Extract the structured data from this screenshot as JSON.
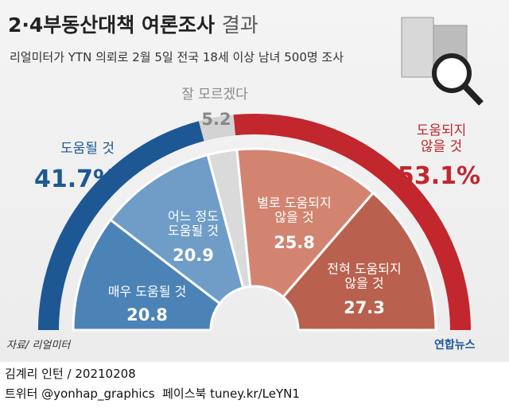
{
  "header": {
    "title": "2·4부동산대책 여론조사",
    "title_suffix": "결과",
    "subtitle": "리얼미터가 YTN 의뢰로 2월 5일 전국 18세 이상 남녀 500명 조사"
  },
  "chart_data": {
    "type": "half-donut",
    "outer": {
      "categories": [
        "도움될 것",
        "잘 모르겠다",
        "도움되지\n않을 것"
      ],
      "values": [
        41.7,
        5.2,
        53.1
      ],
      "value_labels": [
        "41.7%",
        "5.2",
        "53.1%"
      ],
      "colors": [
        "#1d5895",
        "#d3d3d3",
        "#c1272d"
      ]
    },
    "inner": {
      "categories": [
        "매우 도움될 것",
        "어느 정도\n도움될 것",
        "별로 도움되지\n않을 것",
        "전혀 도움되지\n않을 것"
      ],
      "values": [
        20.8,
        20.9,
        25.8,
        27.3
      ],
      "colors": [
        "#4c83b6",
        "#6f9dc7",
        "#d28470",
        "#b9614e"
      ]
    }
  },
  "footer": {
    "source": "자료/ 리얼미터",
    "logo": "연합뉴스",
    "credit": "김계리 인턴 / 20210208",
    "social": "트위터 @yonhap_graphics  페이스북 tuney.kr/LeYN1"
  }
}
